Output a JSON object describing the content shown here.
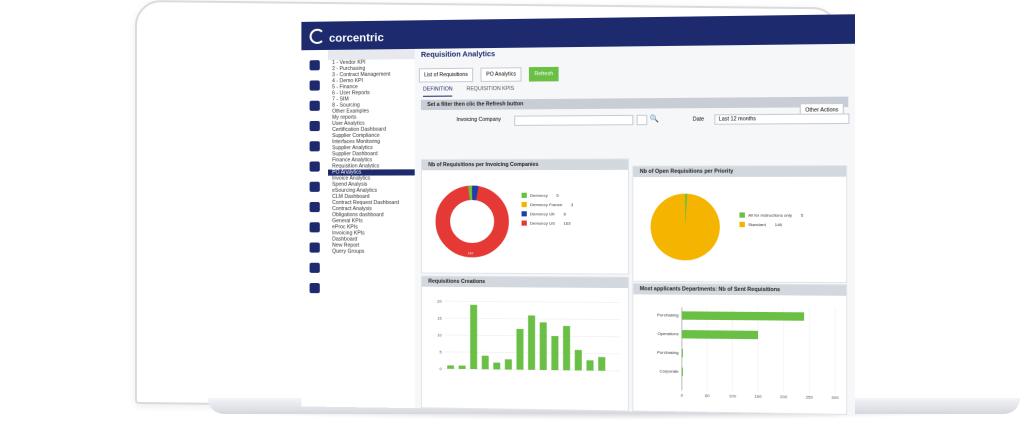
{
  "app": {
    "logo": "corcentric",
    "page_title": "Requisition Analytics"
  },
  "toolbar": {
    "list_label": "List of Requisitions",
    "po_label": "PO Analytics",
    "refresh_label": "Refresh",
    "other_actions_label": "Other Actions"
  },
  "tabs": [
    {
      "label": "DEFINITION"
    },
    {
      "label": "REQUISITION KPIS"
    }
  ],
  "filter": {
    "banner": "Set a filter then clic the Refresh button",
    "invoicing_label": "Invoicing Company",
    "date_label": "Date",
    "date_value": "Last 12 months"
  },
  "tree": {
    "items": [
      "1 - Vendor KPI",
      "2 - Purchasing",
      "3 - Contract Management",
      "4 - Demo KPI",
      "5 - Finance",
      "6 - User Reports",
      "7 - SIM",
      "8 - Sourcing",
      "Other Examples",
      "My reports",
      "User Analytics",
      "Certification Dashboard",
      "Supplier Compliance",
      "Interfaces Monitoring",
      "Supplier Analytics",
      "Supplier Dashboard",
      "Finance Analytics",
      "Requisition Analytics",
      "PO Analytics",
      "Invoice Analytics",
      "Spend Analysis",
      "eSourcing Analytics",
      "CLM Dashboard",
      "Contract Request Dashboard",
      "Contract Analysis",
      "Obligations dashboard",
      "General KPIs",
      "eProc KPIs",
      "Invoicing KPIs",
      "Dashboard",
      "New Report",
      "Query Groups"
    ],
    "selected": "PO Analytics"
  },
  "panels": {
    "p1": "Nb of Requisitions per Invoicing Companies",
    "p2": "Nb of Open Requisitions per Priority",
    "p3": "Requisitions Creations",
    "p4": "Most applicants Departments: Nb of Sent Requisitions"
  },
  "donut": {
    "legend": [
      {
        "label": "Demoncy",
        "value": "5",
        "color": "#6abf45"
      },
      {
        "label": "Demoncy France",
        "value": "3",
        "color": "#f5b400"
      },
      {
        "label": "Demoncy UK",
        "value": "6",
        "color": "#1d3fa6"
      },
      {
        "label": "Demoncy US",
        "value": "163",
        "color": "#e53935"
      }
    ],
    "center_text": "163"
  },
  "pie": {
    "legend": [
      {
        "label": "All for instructions only",
        "value": "5",
        "color": "#6abf45"
      },
      {
        "label": "Standard",
        "value": "146",
        "color": "#f5b400"
      }
    ]
  },
  "chart_data": [
    {
      "type": "bar",
      "title": "Requisitions Creations",
      "categories": [
        "",
        "",
        "",
        "",
        "",
        "",
        "",
        "",
        "",
        "",
        "",
        "",
        "",
        "",
        ""
      ],
      "values": [
        1,
        1,
        19,
        4,
        2,
        3,
        12,
        16,
        14,
        10,
        13,
        6,
        3,
        4,
        0
      ],
      "ylim": [
        0,
        20
      ],
      "yticks": [
        "20",
        "15",
        "10",
        "5",
        "0"
      ],
      "color": "#6abf45"
    },
    {
      "type": "bar",
      "orientation": "horizontal",
      "title": "Most applicants Departments: Nb of Sent Requisitions",
      "categories": [
        "Purchasing",
        "Operations",
        "Purchasing",
        "Corporate"
      ],
      "values": [
        240,
        150,
        2,
        1
      ],
      "xlim": [
        0,
        300
      ],
      "xticks": [
        "0",
        "50",
        "100",
        "150",
        "200",
        "250",
        "300"
      ],
      "color": "#6abf45"
    }
  ]
}
